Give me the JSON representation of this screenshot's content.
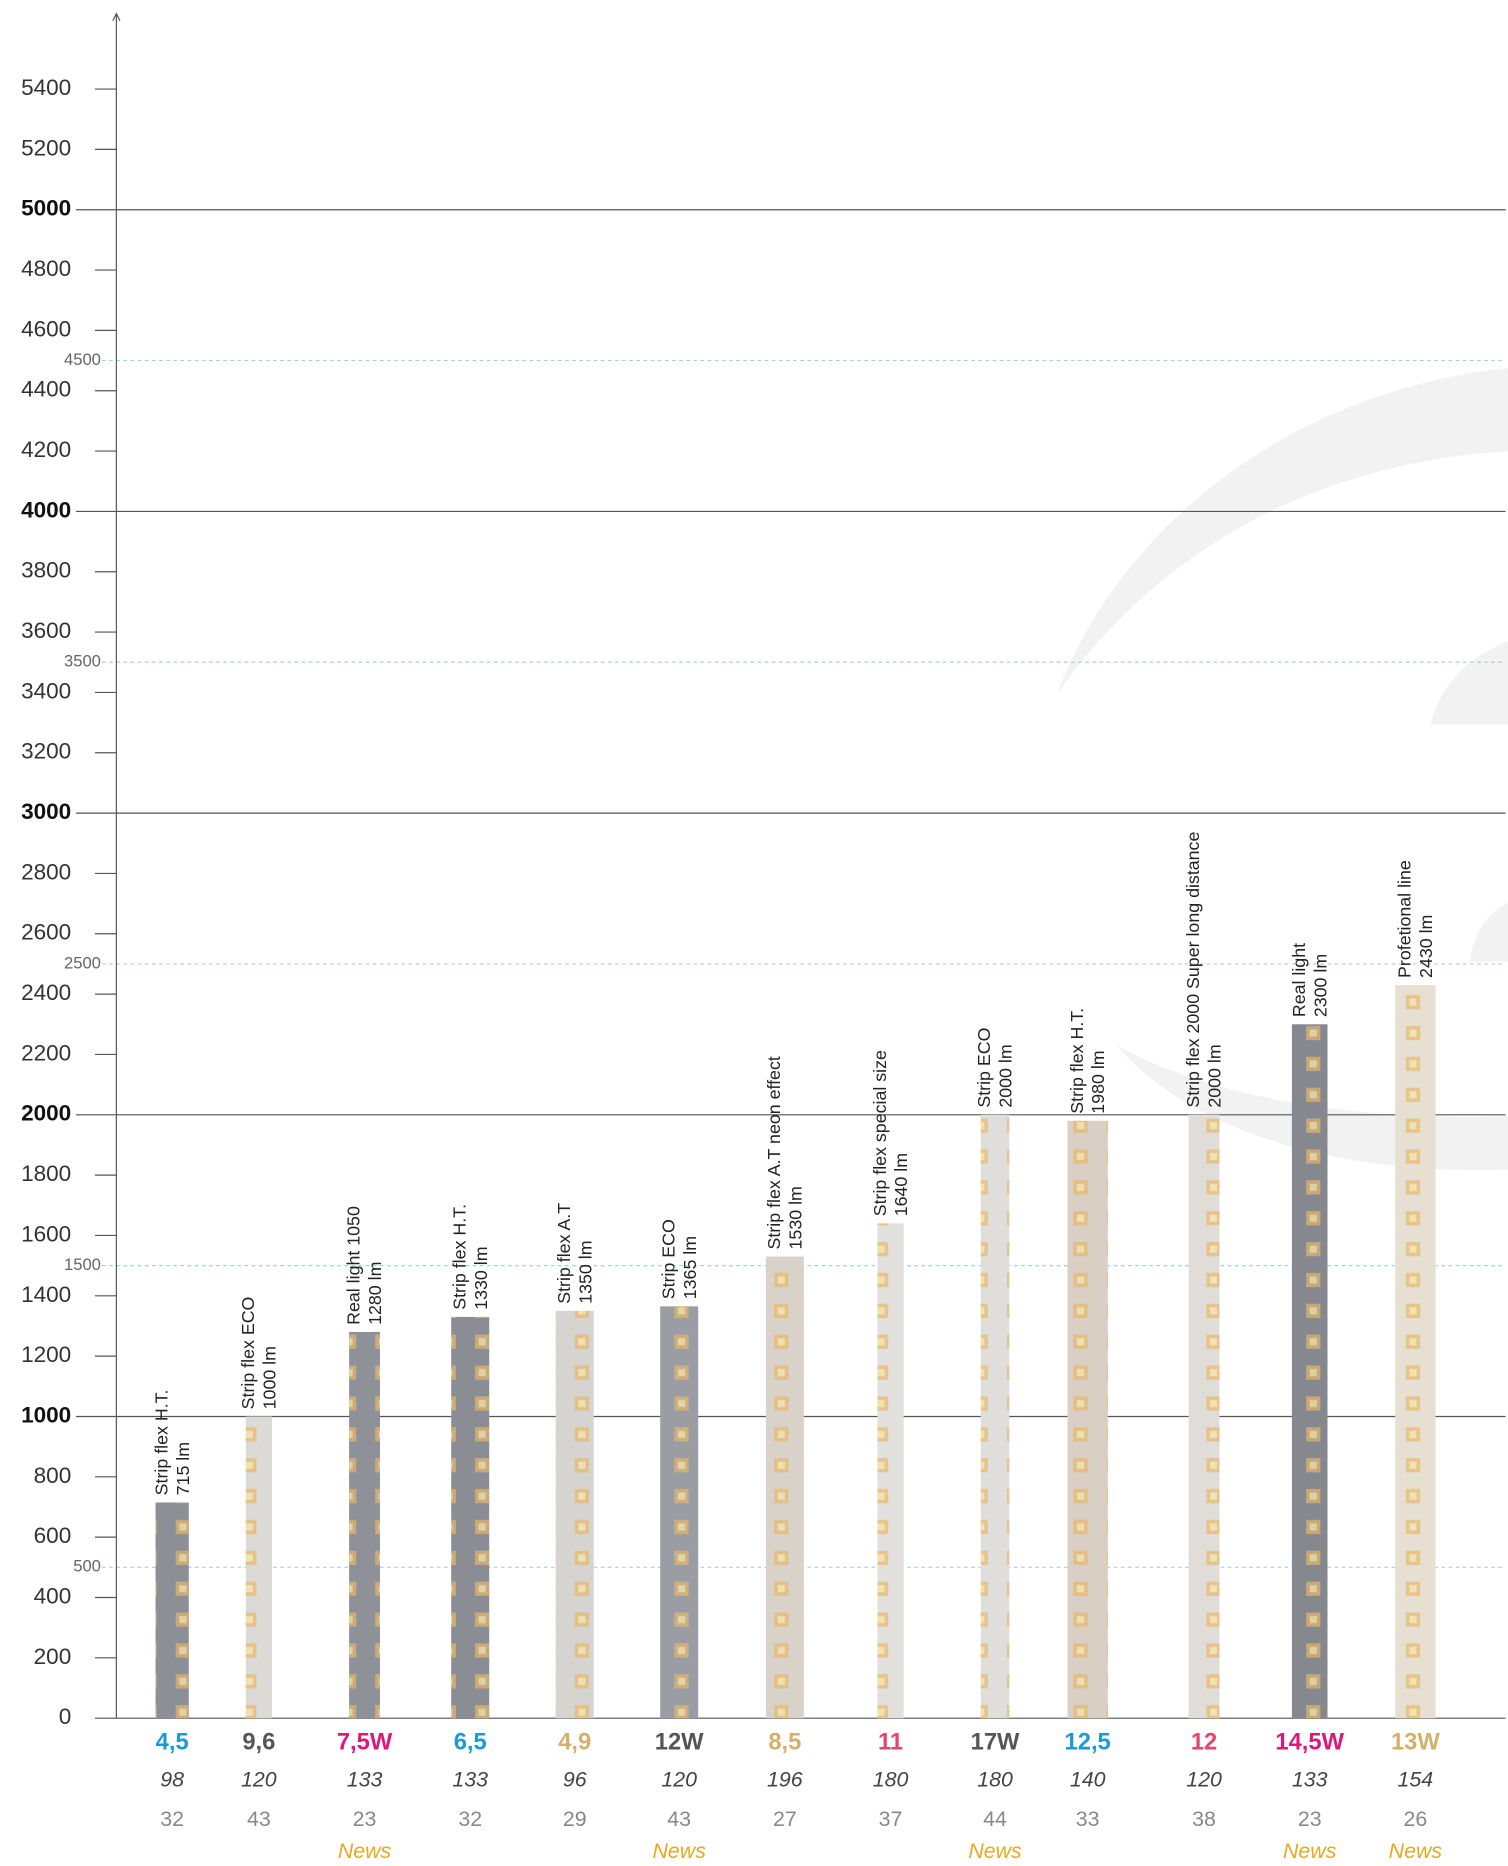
{
  "chart_data": {
    "type": "bar",
    "categories": [
      "Strip flex H.T.",
      "Strip flex ECO",
      "Real light 1050",
      "Strip flex H.T.",
      "Strip flex A.T",
      "Strip ECO",
      "Strip flex A.T neon effect",
      "Strip flex special size",
      "Strip ECO",
      "Strip flex H.T.",
      "Strip flex 2000 Super long distance",
      "Real light",
      "Profetional line"
    ],
    "values": [
      715,
      1000,
      1280,
      1330,
      1350,
      1365,
      1530,
      1640,
      2000,
      1980,
      2000,
      2300,
      2430
    ],
    "value_labels": [
      "715 lm",
      "1000 lm",
      "1280 lm",
      "1330 lm",
      "1350 lm",
      "1365 lm",
      "1530 lm",
      "1640 lm",
      "2000 lm",
      "1980 lm",
      "2000 lm",
      "2300 lm",
      "2430 lm"
    ],
    "colors": [
      "#8c8f96",
      "#dcdad6",
      "#8e9198",
      "#8a8d94",
      "#d6d4d0",
      "#9a9da3",
      "#d8d2c8",
      "#e2e0dc",
      "#dfdedb",
      "#d9cfc4",
      "#e0ddd8",
      "#85888f",
      "#e6e0d2"
    ],
    "power": [
      "4,5",
      "9,6",
      "7,5W",
      "6,5",
      "4,9",
      "12W",
      "8,5",
      "11",
      "17W",
      "12,5",
      "12",
      "14,5W",
      "13W"
    ],
    "power_colors": [
      "#1a9ad6",
      "#555555",
      "#e0177a",
      "#1a9ad6",
      "#d4b06a",
      "#555555",
      "#d4b06a",
      "#e6456a",
      "#555555",
      "#1a9ad6",
      "#e6456a",
      "#e0177a",
      "#d4b06a"
    ],
    "row2": [
      98,
      120,
      133,
      133,
      96,
      120,
      196,
      180,
      180,
      140,
      120,
      133,
      154
    ],
    "row3": [
      32,
      43,
      23,
      32,
      29,
      43,
      27,
      37,
      44,
      33,
      38,
      23,
      26
    ],
    "news": [
      null,
      null,
      "News",
      null,
      null,
      "News",
      null,
      null,
      "News",
      null,
      null,
      "News",
      "News"
    ],
    "ylim": [
      0,
      5650
    ],
    "yticks": [
      0,
      200,
      400,
      600,
      800,
      1000,
      1200,
      1400,
      1600,
      1800,
      2000,
      2200,
      2400,
      2600,
      2800,
      3000,
      3200,
      3400,
      3600,
      3800,
      4000,
      4200,
      4400,
      4600,
      4800,
      5000,
      5200,
      5400
    ],
    "major_yticks": [
      1000,
      2000,
      3000,
      4000,
      5000
    ],
    "secondary_yticks": [
      500,
      1500,
      2500,
      3500,
      4500
    ]
  }
}
